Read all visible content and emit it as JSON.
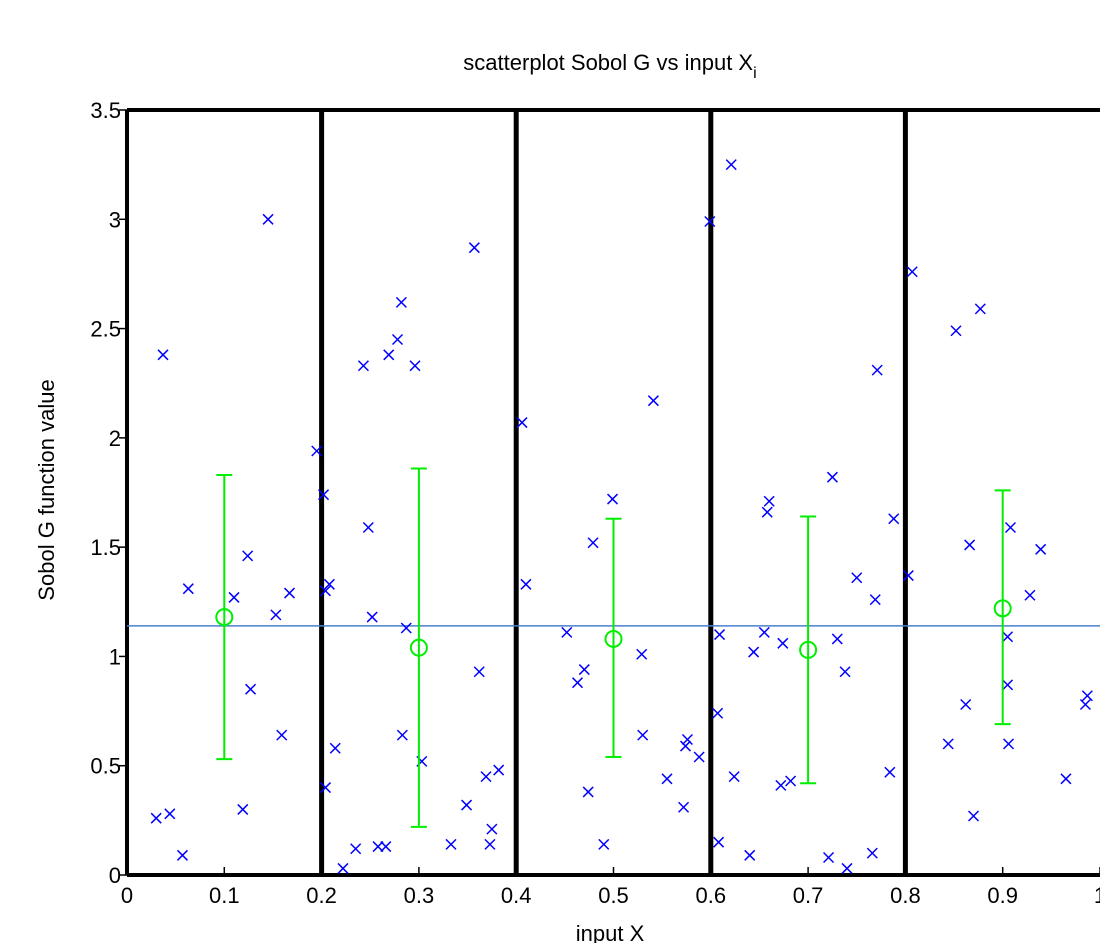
{
  "chart_data": {
    "type": "scatter",
    "title": "scatterplot Sobol G vs input X",
    "title_subscript": "i",
    "xlabel": "input X",
    "ylabel": "Sobol G function value",
    "xlim": [
      0,
      1
    ],
    "ylim": [
      0,
      3.5
    ],
    "xticks": [
      "0",
      "0.1",
      "0.2",
      "0.3",
      "0.4",
      "0.5",
      "0.6",
      "0.7",
      "0.8",
      "0.9",
      "1"
    ],
    "yticks": [
      "0",
      "0.5",
      "1",
      "1.5",
      "2",
      "2.5",
      "3",
      "3.5"
    ],
    "bin_boundaries": [
      0.2,
      0.4,
      0.6,
      0.8
    ],
    "overall_mean": 1.14,
    "colors": {
      "points": "#0000ff",
      "bin_stats": "#00ee00",
      "mean_line": "#4a7fd0",
      "bin_lines": "#000000"
    },
    "bin_stats": [
      {
        "x": 0.1,
        "mean": 1.18,
        "low": 0.53,
        "high": 1.83
      },
      {
        "x": 0.3,
        "mean": 1.04,
        "low": 0.22,
        "high": 1.86
      },
      {
        "x": 0.5,
        "mean": 1.08,
        "low": 0.54,
        "high": 1.63
      },
      {
        "x": 0.7,
        "mean": 1.03,
        "low": 0.42,
        "high": 1.64
      },
      {
        "x": 0.9,
        "mean": 1.22,
        "low": 0.69,
        "high": 1.76
      }
    ],
    "points": [
      [
        0.03,
        0.26
      ],
      [
        0.037,
        2.38
      ],
      [
        0.044,
        0.28
      ],
      [
        0.057,
        0.09
      ],
      [
        0.063,
        1.31
      ],
      [
        0.11,
        1.27
      ],
      [
        0.119,
        0.3
      ],
      [
        0.124,
        1.46
      ],
      [
        0.127,
        0.85
      ],
      [
        0.145,
        3.0
      ],
      [
        0.153,
        1.19
      ],
      [
        0.159,
        0.64
      ],
      [
        0.167,
        1.29
      ],
      [
        0.195,
        1.94
      ],
      [
        0.202,
        1.74
      ],
      [
        0.204,
        0.4
      ],
      [
        0.204,
        1.3
      ],
      [
        0.208,
        1.33
      ],
      [
        0.214,
        0.58
      ],
      [
        0.222,
        0.03
      ],
      [
        0.235,
        0.12
      ],
      [
        0.243,
        2.33
      ],
      [
        0.248,
        1.59
      ],
      [
        0.252,
        1.18
      ],
      [
        0.258,
        0.13
      ],
      [
        0.266,
        0.13
      ],
      [
        0.269,
        2.38
      ],
      [
        0.278,
        2.45
      ],
      [
        0.282,
        2.62
      ],
      [
        0.283,
        0.64
      ],
      [
        0.287,
        1.13
      ],
      [
        0.296,
        2.33
      ],
      [
        0.303,
        0.52
      ],
      [
        0.333,
        0.14
      ],
      [
        0.349,
        0.32
      ],
      [
        0.357,
        2.87
      ],
      [
        0.362,
        0.93
      ],
      [
        0.369,
        0.45
      ],
      [
        0.373,
        0.14
      ],
      [
        0.375,
        0.21
      ],
      [
        0.382,
        0.48
      ],
      [
        0.406,
        2.07
      ],
      [
        0.41,
        1.33
      ],
      [
        0.452,
        1.11
      ],
      [
        0.463,
        0.88
      ],
      [
        0.47,
        0.94
      ],
      [
        0.474,
        0.38
      ],
      [
        0.479,
        1.52
      ],
      [
        0.49,
        0.14
      ],
      [
        0.499,
        1.72
      ],
      [
        0.529,
        1.01
      ],
      [
        0.53,
        0.64
      ],
      [
        0.541,
        2.17
      ],
      [
        0.555,
        0.44
      ],
      [
        0.572,
        0.31
      ],
      [
        0.574,
        0.59
      ],
      [
        0.576,
        0.62
      ],
      [
        0.588,
        0.54
      ],
      [
        0.599,
        2.99
      ],
      [
        0.607,
        0.74
      ],
      [
        0.608,
        0.15
      ],
      [
        0.609,
        1.1
      ],
      [
        0.624,
        0.45
      ],
      [
        0.621,
        3.25
      ],
      [
        0.64,
        0.09
      ],
      [
        0.644,
        1.02
      ],
      [
        0.655,
        1.11
      ],
      [
        0.658,
        1.66
      ],
      [
        0.66,
        1.71
      ],
      [
        0.672,
        0.41
      ],
      [
        0.674,
        1.06
      ],
      [
        0.682,
        0.43
      ],
      [
        0.721,
        0.08
      ],
      [
        0.725,
        1.82
      ],
      [
        0.73,
        1.08
      ],
      [
        0.738,
        0.93
      ],
      [
        0.74,
        0.03
      ],
      [
        0.75,
        1.36
      ],
      [
        0.766,
        0.1
      ],
      [
        0.769,
        1.26
      ],
      [
        0.771,
        2.31
      ],
      [
        0.784,
        0.47
      ],
      [
        0.788,
        1.63
      ],
      [
        0.803,
        1.37
      ],
      [
        0.807,
        2.76
      ],
      [
        0.844,
        0.6
      ],
      [
        0.852,
        2.49
      ],
      [
        0.862,
        0.78
      ],
      [
        0.866,
        1.51
      ],
      [
        0.87,
        0.27
      ],
      [
        0.877,
        2.59
      ],
      [
        0.905,
        1.09
      ],
      [
        0.905,
        0.87
      ],
      [
        0.906,
        0.6
      ],
      [
        0.908,
        1.59
      ],
      [
        0.928,
        1.28
      ],
      [
        0.939,
        1.49
      ],
      [
        0.965,
        0.44
      ],
      [
        0.985,
        0.78
      ],
      [
        0.987,
        0.82
      ]
    ]
  }
}
